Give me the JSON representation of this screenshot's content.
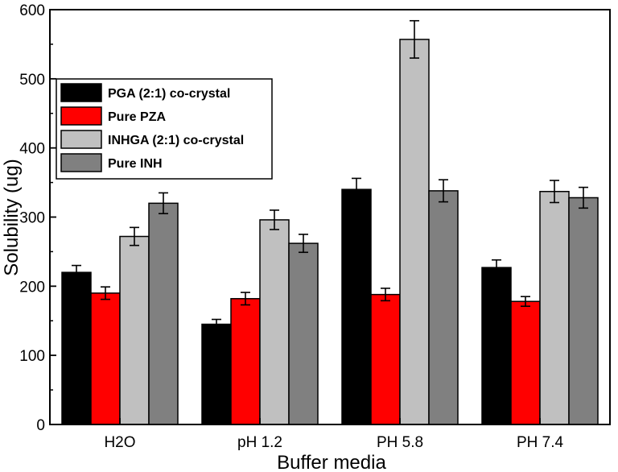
{
  "chart_data": {
    "type": "bar",
    "title": "",
    "xlabel": "Buffer media",
    "ylabel": "Solubility (ug)",
    "ylim": [
      0,
      600
    ],
    "yticks": [
      0,
      100,
      200,
      300,
      400,
      500,
      600
    ],
    "categories": [
      "H2O",
      "pH 1.2",
      "PH 5.8",
      "PH 7.4"
    ],
    "legend_position": "top-left",
    "series": [
      {
        "name": "PGA (2:1) co-crystal",
        "color": "#000000",
        "values": [
          220,
          145,
          340,
          227
        ],
        "errors": [
          10,
          7,
          16,
          11
        ]
      },
      {
        "name": "Pure PZA",
        "color": "#ff0000",
        "values": [
          190,
          182,
          188,
          178
        ],
        "errors": [
          9,
          9,
          9,
          7
        ]
      },
      {
        "name": "INHGA (2:1) co-crystal",
        "color": "#c0c0c0",
        "values": [
          272,
          296,
          557,
          337
        ],
        "errors": [
          13,
          14,
          27,
          16
        ]
      },
      {
        "name": "Pure INH",
        "color": "#808080",
        "values": [
          320,
          262,
          338,
          328
        ],
        "errors": [
          15,
          13,
          16,
          15
        ]
      }
    ]
  }
}
